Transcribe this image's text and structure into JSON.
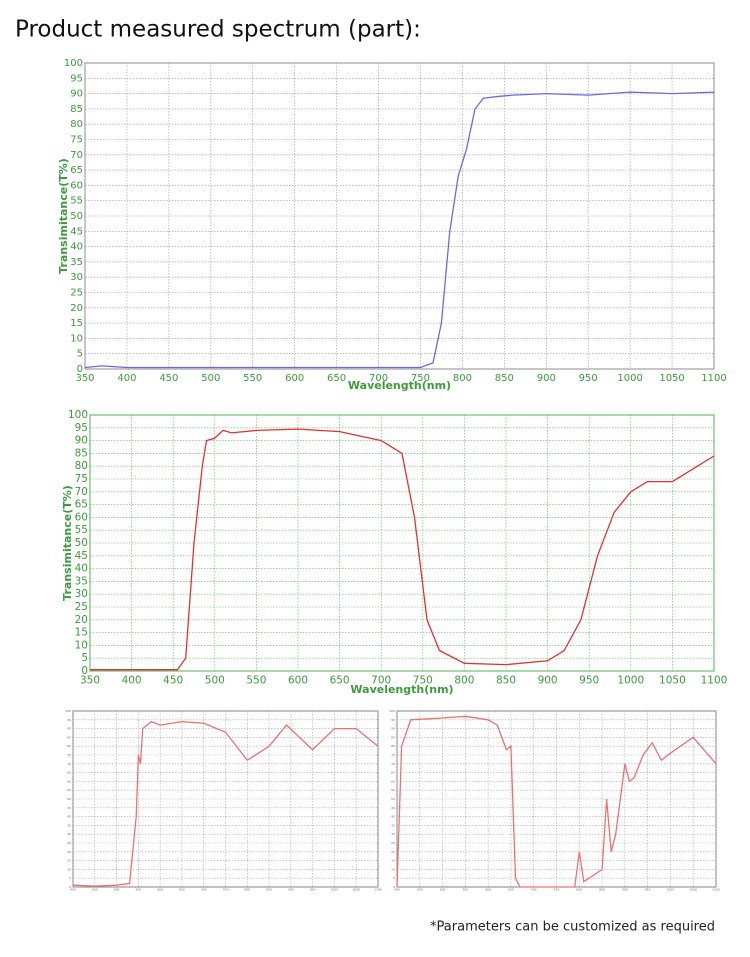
{
  "title": "Product measured spectrum (part):",
  "note": "*Parameters can be customized as required",
  "chart_data": [
    {
      "type": "line",
      "xlabel": "Wavelength(nm)",
      "ylabel": "Transimitance(T%)",
      "x": [
        350,
        370,
        400,
        450,
        500,
        550,
        600,
        650,
        700,
        750,
        765,
        775,
        785,
        795,
        805,
        815,
        825,
        840,
        860,
        900,
        950,
        1000,
        1050,
        1100
      ],
      "values": [
        0.5,
        1,
        0.5,
        0.5,
        0.5,
        0.5,
        0.5,
        0.5,
        0.5,
        0.5,
        2,
        15,
        45,
        63,
        72,
        85,
        88.5,
        89,
        89.5,
        90,
        89.5,
        90.5,
        90,
        90.5
      ],
      "color": "#6a6ae6",
      "grid": true,
      "xlim": [
        350,
        1100
      ],
      "xticks": [
        350,
        400,
        450,
        500,
        550,
        600,
        650,
        700,
        750,
        800,
        850,
        900,
        950,
        1000,
        1050,
        1100
      ],
      "ylim": [
        0,
        100
      ],
      "yticks": [
        0,
        5,
        10,
        15,
        20,
        25,
        30,
        35,
        40,
        45,
        50,
        55,
        60,
        65,
        70,
        75,
        80,
        85,
        90,
        95,
        100
      ]
    },
    {
      "type": "line",
      "xlabel": "Wavelength(nm)",
      "ylabel": "Transimitance(T%)",
      "x": [
        350,
        400,
        455,
        465,
        475,
        485,
        490,
        500,
        510,
        520,
        550,
        600,
        650,
        700,
        710,
        725,
        740,
        755,
        770,
        800,
        850,
        900,
        920,
        940,
        960,
        980,
        1000,
        1020,
        1050,
        1080,
        1100
      ],
      "values": [
        0.5,
        0.5,
        0.5,
        5,
        50,
        80,
        90,
        91,
        94,
        93,
        94,
        94.5,
        93.5,
        90,
        88,
        85,
        60,
        20,
        8,
        3,
        2.5,
        4,
        8,
        20,
        45,
        62,
        70,
        74,
        74,
        80,
        84
      ],
      "color": "#e53030",
      "grid": true,
      "xlim": [
        350,
        1100
      ],
      "xticks": [
        350,
        400,
        450,
        500,
        550,
        600,
        650,
        700,
        750,
        800,
        850,
        900,
        950,
        1000,
        1050,
        1100
      ],
      "ylim": [
        0,
        100
      ],
      "yticks": [
        0,
        5,
        10,
        15,
        20,
        25,
        30,
        35,
        40,
        45,
        50,
        55,
        60,
        65,
        70,
        75,
        80,
        85,
        90,
        95,
        100
      ]
    },
    {
      "type": "line",
      "x": [
        400,
        450,
        500,
        530,
        545,
        550,
        555,
        560,
        580,
        600,
        650,
        700,
        750,
        800,
        850,
        890,
        950,
        1000,
        1050,
        1100
      ],
      "values": [
        1,
        0.5,
        1,
        2,
        40,
        75,
        70,
        90,
        94,
        92,
        94,
        93,
        88,
        72,
        80,
        92,
        78,
        90,
        90,
        80
      ],
      "color": "#f07070",
      "grid": true,
      "xlim": [
        400,
        1100
      ],
      "xticks": [
        400,
        450,
        500,
        550,
        600,
        650,
        700,
        750,
        800,
        850,
        900,
        950,
        1000,
        1050,
        1100
      ],
      "ylim": [
        0,
        100
      ],
      "yticks": [
        0,
        5,
        10,
        15,
        20,
        25,
        30,
        35,
        40,
        45,
        50,
        55,
        60,
        65,
        70,
        75,
        80,
        85,
        90,
        95,
        100
      ]
    },
    {
      "type": "line",
      "x": [
        400,
        410,
        430,
        500,
        550,
        600,
        620,
        640,
        650,
        660,
        670,
        700,
        750,
        790,
        800,
        810,
        850,
        860,
        870,
        880,
        900,
        910,
        920,
        940,
        960,
        980,
        1000,
        1050,
        1100
      ],
      "values": [
        0,
        80,
        95,
        96,
        97,
        95,
        92,
        78,
        80,
        5,
        0,
        0,
        0,
        0,
        20,
        3,
        10,
        50,
        20,
        30,
        70,
        60,
        62,
        75,
        82,
        72,
        76,
        85,
        70
      ],
      "color": "#f07070",
      "grid": true,
      "xlim": [
        400,
        1100
      ],
      "xticks": [
        400,
        450,
        500,
        550,
        600,
        650,
        700,
        750,
        800,
        850,
        900,
        950,
        1000,
        1050,
        1100
      ],
      "ylim": [
        0,
        100
      ],
      "yticks": [
        0,
        5,
        10,
        15,
        20,
        25,
        30,
        35,
        40,
        45,
        50,
        55,
        60,
        65,
        70,
        75,
        80,
        85,
        90,
        95,
        100
      ]
    }
  ]
}
